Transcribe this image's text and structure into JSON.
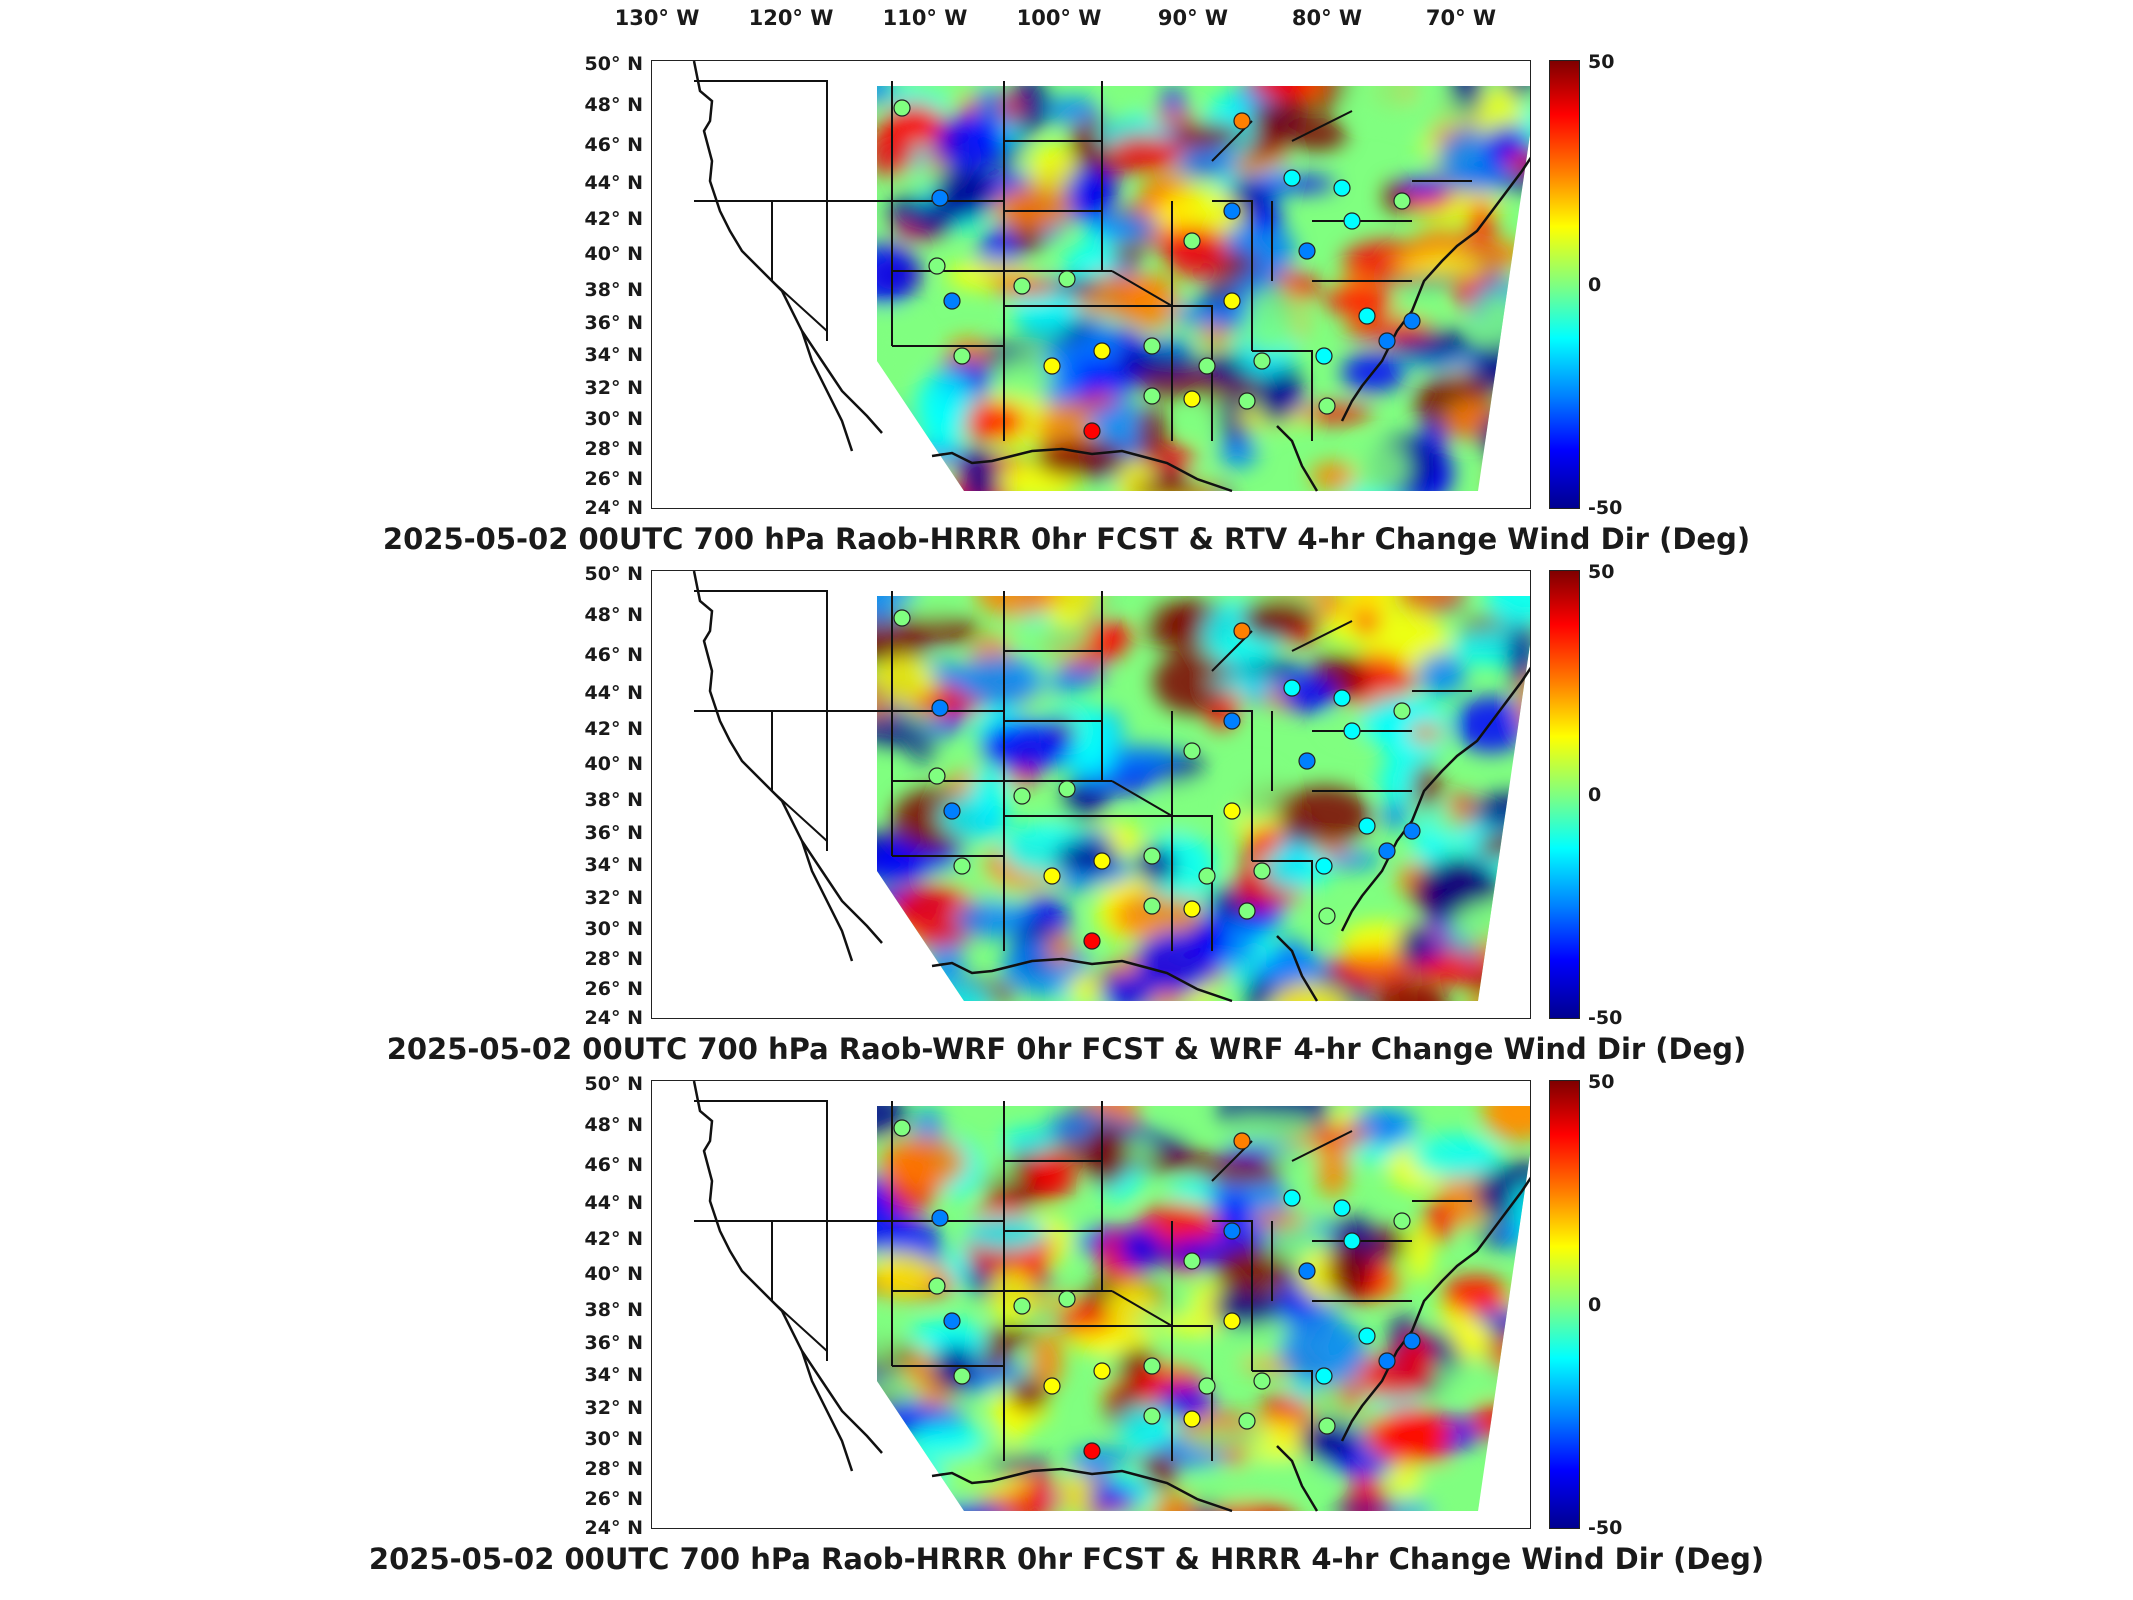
{
  "longitude_labels": [
    "130° W",
    "120° W",
    "110° W",
    "100° W",
    "90° W",
    "80° W",
    "70° W"
  ],
  "latitude_labels": [
    "50° N",
    "48° N",
    "46° N",
    "44° N",
    "42° N",
    "40° N",
    "38° N",
    "36° N",
    "34° N",
    "32° N",
    "30° N",
    "28° N",
    "26° N",
    "24° N"
  ],
  "colorbar": {
    "max": "50",
    "mid": "0",
    "min": "-50",
    "colors": [
      "#7f0000",
      "#ff0000",
      "#ff8000",
      "#ffff00",
      "#80ff80",
      "#00ffff",
      "#0080ff",
      "#0000ff",
      "#00008f"
    ]
  },
  "panels": [
    {
      "title": "2025-05-02 00UTC 700 hPa Raob-HRRR 0hr FCST & RTV 4-hr Change Wind Dir (Deg)"
    },
    {
      "title": "2025-05-02 00UTC 700 hPa Raob-WRF 0hr FCST & WRF 4-hr Change Wind Dir (Deg)"
    },
    {
      "title": "2025-05-02 00UTC 700 hPa Raob-HRRR 0hr FCST & HRRR 4-hr Change Wind Dir (Deg)"
    }
  ]
}
